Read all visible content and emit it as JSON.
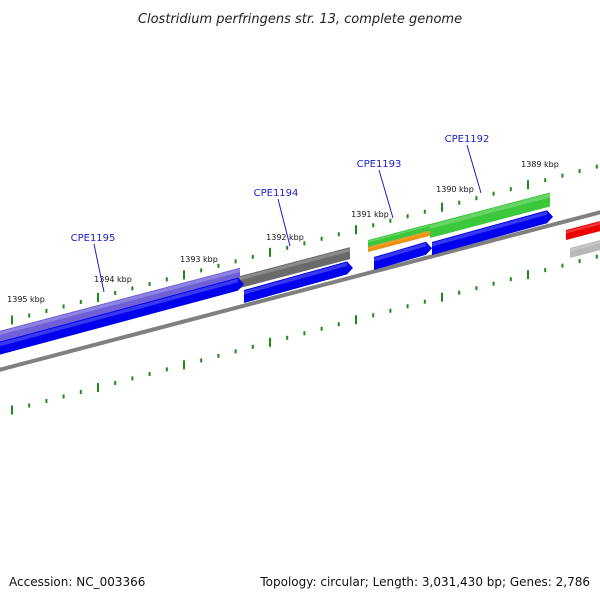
{
  "title": "Clostridium perfringens str. 13, complete genome",
  "footer": {
    "accession": "Accession: NC_003366",
    "summary": "Topology: circular; Length: 3,031,430 bp; Genes: 2,786"
  },
  "scale_labels": [
    "1395 kbp",
    "1394 kbp",
    "1393 kbp",
    "1392 kbp",
    "1391 kbp",
    "1390 kbp",
    "1389 kbp"
  ],
  "gene_labels": [
    "CPE1195",
    "CPE1194",
    "CPE1193",
    "CPE1192"
  ],
  "colors": {
    "tick": "#1a8a1a",
    "backbone": "#808080",
    "cds": "#0000ee",
    "gene_label": "#1c1cc8",
    "feature_purple": "#7060d8",
    "feature_gray": "#6a6a6a",
    "feature_green": "#3cc83c",
    "feature_orange": "#f09010",
    "feature_red": "#ee0000",
    "feature_lightgray": "#b8b8b8"
  }
}
